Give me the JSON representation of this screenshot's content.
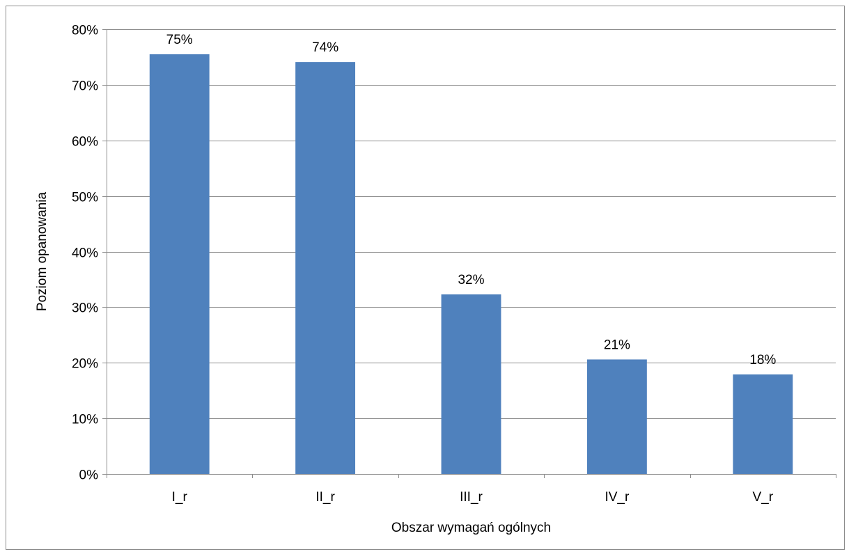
{
  "chart_data": {
    "type": "bar",
    "categories": [
      "I_r",
      "II_r",
      "III_r",
      "IV_r",
      "V_r"
    ],
    "values": [
      75.5,
      74.1,
      32.3,
      20.6,
      17.9
    ],
    "data_labels": [
      "75%",
      "74%",
      "32%",
      "21%",
      "18%"
    ],
    "title": "",
    "xlabel": "Obszar wymagań ogólnych",
    "ylabel": "Poziom opanowania",
    "ylim": [
      0,
      80
    ],
    "yticks": [
      0,
      10,
      20,
      30,
      40,
      50,
      60,
      70,
      80
    ],
    "ytick_labels": [
      "0%",
      "10%",
      "20%",
      "30%",
      "40%",
      "50%",
      "60%",
      "70%",
      "80%"
    ],
    "grid": true,
    "legend": "none",
    "bar_color": "#4f81bd",
    "gridline_color": "#8c8c8c"
  }
}
